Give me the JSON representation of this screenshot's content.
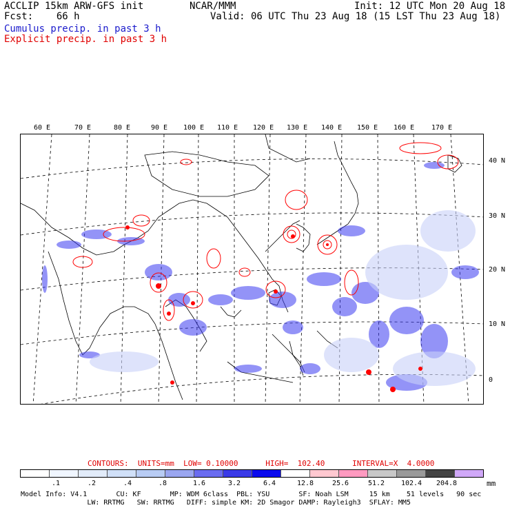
{
  "header": {
    "left_line1": "ACCLIP 15km ARW-GFS init",
    "center_line1": "NCAR/MMM",
    "right_line1": "Init: 12 UTC Mon 20 Aug 18",
    "left_line2": "Fcst:    66 h",
    "right_line2": "Valid: 06 UTC Thu 23 Aug 18 (15 LST Thu 23 Aug 18)",
    "line3": "Cumulus precip. in past 3 h",
    "line4": "Explicit precip. in past 3 h"
  },
  "map": {
    "lon_labels": [
      "60 E",
      "70 E",
      "80 E",
      "90 E",
      "100 E",
      "110 E",
      "120 E",
      "130 E",
      "140 E",
      "150 E",
      "160 E",
      "170 E"
    ],
    "lat_labels": [
      "40 N",
      "30 N",
      "20 N",
      "10 N",
      "0"
    ],
    "cumulus_color": "#3333ff",
    "explicit_color": "#ff0000"
  },
  "contours": {
    "text": "CONTOURS:  UNITS=mm  LOW= 0.10000      HIGH=  102.40      INTERVAL=X  4.0000"
  },
  "colorbar": {
    "colors": [
      "#ffffff",
      "#f0f6ff",
      "#e2ecfa",
      "#d0e0f8",
      "#b8ccf4",
      "#9aa6f0",
      "#6a6cf0",
      "#3a3ae8",
      "#0a0aee",
      "#ffffff",
      "#ffc8d0",
      "#ff9ac0",
      "#c8c8c8",
      "#9a9a9a",
      "#444444",
      "#d0a8f8"
    ],
    "ticks": [
      ".1",
      ".2",
      ".4",
      ".8",
      "1.6",
      "3.2",
      "6.4",
      "12.8",
      "25.6",
      "51.2",
      "102.4",
      "204.8"
    ],
    "unit": "mm"
  },
  "footer": {
    "line1": "Model Info: V4.1       CU: KF       MP: WDM 6class  PBL: YSU       SF: Noah LSM     15 km    51 levels   90 sec",
    "line2": "                LW: RRTMG   SW: RRTMG   DIFF: simple KM: 2D Smagor DAMP: Rayleigh3  SFLAY: MM5"
  }
}
